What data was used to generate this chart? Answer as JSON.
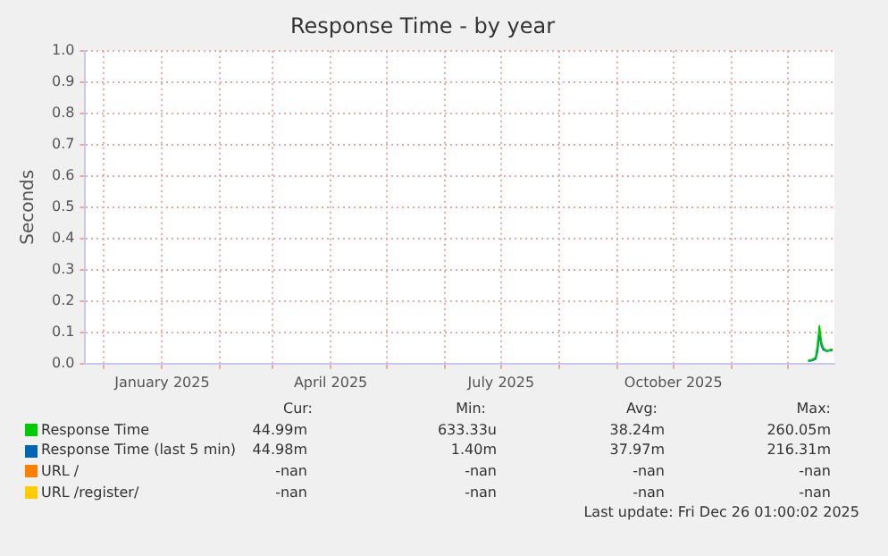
{
  "chart_data": {
    "type": "line",
    "title": "Response Time - by year",
    "ylabel": "Seconds",
    "xlim": [
      "2024-11-21",
      "2025-12-26"
    ],
    "xticks": [
      {
        "value": "2024-12-01",
        "label": null
      },
      {
        "value": "2025-01-01",
        "label": "January 2025"
      },
      {
        "value": "2025-02-01",
        "label": null
      },
      {
        "value": "2025-03-01",
        "label": null
      },
      {
        "value": "2025-04-01",
        "label": "April 2025"
      },
      {
        "value": "2025-05-01",
        "label": null
      },
      {
        "value": "2025-06-01",
        "label": null
      },
      {
        "value": "2025-07-01",
        "label": "July 2025"
      },
      {
        "value": "2025-08-01",
        "label": null
      },
      {
        "value": "2025-09-01",
        "label": null
      },
      {
        "value": "2025-10-01",
        "label": "October 2025"
      },
      {
        "value": "2025-11-01",
        "label": null
      },
      {
        "value": "2025-12-01",
        "label": null
      }
    ],
    "ylim": [
      0,
      1
    ],
    "yticks": [
      {
        "value": 0,
        "label": "0.0"
      },
      0.1,
      0.2,
      0.3,
      0.4,
      0.5,
      0.6,
      0.7,
      0.8,
      0.9,
      {
        "value": 1,
        "label": "1.0"
      }
    ],
    "x": [
      "2025-12-12",
      "2025-12-14",
      "2025-12-16",
      "2025-12-17",
      "2025-12-18",
      "2025-12-19",
      "2025-12-20",
      "2025-12-22",
      "2025-12-24",
      "2025-12-25"
    ],
    "series": [
      {
        "name": "Response Time",
        "color": "#00cc00",
        "values": [
          0.01,
          0.012,
          0.02,
          0.06,
          0.12,
          0.07,
          0.05,
          0.04,
          0.045,
          0.045
        ]
      },
      {
        "name": "Response Time (last 5 min)",
        "color": "#0066b3",
        "values": [
          0.008,
          0.01,
          0.015,
          0.04,
          0.1,
          0.06,
          0.045,
          0.04,
          0.042,
          0.043
        ]
      },
      {
        "name": "URL /",
        "color": "#ff8000",
        "values": [
          null,
          null,
          null,
          null,
          null,
          null,
          null,
          null,
          null,
          null
        ]
      },
      {
        "name": "URL /register/",
        "color": "#ffcc00",
        "values": [
          null,
          null,
          null,
          null,
          null,
          null,
          null,
          null,
          null,
          null
        ]
      }
    ],
    "grid": true,
    "legend": "bottom",
    "marker": "none",
    "line_style": "solid",
    "annotations": [
      "Cur:",
      "Min:",
      "Avg:",
      "Max:",
      "44.99m",
      "633.33u",
      "38.24m",
      "260.05m",
      "44.98m",
      "1.40m",
      "37.97m",
      "216.31m",
      "-nan",
      "-nan",
      "-nan",
      "-nan",
      "-nan",
      "-nan",
      "-nan",
      "-nan",
      "Last update: Fri Dec 26 01:00:02 2025"
    ]
  }
}
